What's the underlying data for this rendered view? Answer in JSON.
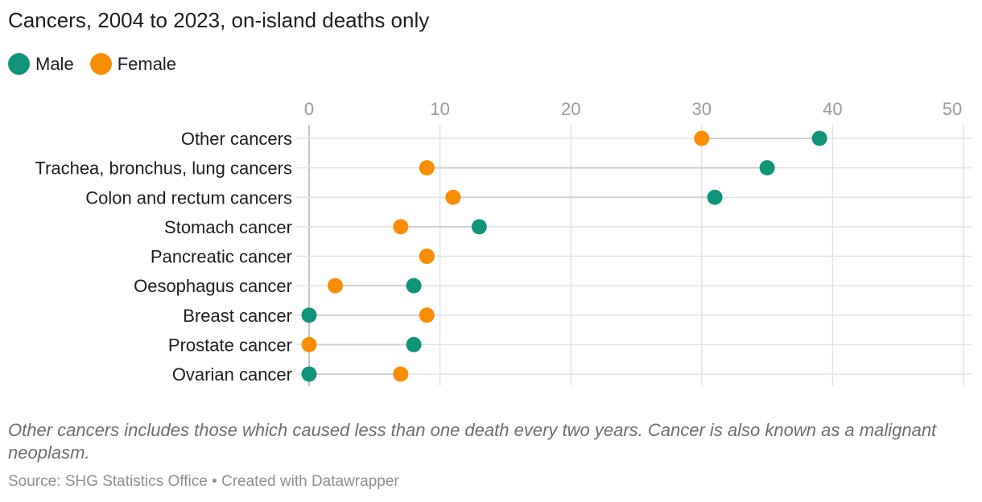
{
  "title": "Cancers, 2004 to 2023, on-island deaths only",
  "legend": [
    {
      "name": "Male",
      "color": "#0f947a"
    },
    {
      "name": "Female",
      "color": "#fa8c00"
    }
  ],
  "chart_data": {
    "type": "scatter",
    "subtype": "dot-plot",
    "title": "Cancers, 2004 to 2023, on-island deaths only",
    "xlabel": "",
    "ylabel": "",
    "xlim": [
      0,
      50
    ],
    "x_ticks": [
      0,
      10,
      20,
      30,
      40,
      50
    ],
    "grid": true,
    "legend_position": "top-left",
    "categories": [
      "Other cancers",
      "Trachea, bronchus, lung cancers",
      "Colon and rectum cancers",
      "Stomach cancer",
      "Pancreatic cancer",
      "Oesophagus cancer",
      "Breast cancer",
      "Prostate cancer",
      "Ovarian cancer"
    ],
    "series": [
      {
        "name": "Male",
        "color": "#0f947a",
        "values": [
          39,
          35,
          31,
          13,
          9,
          8,
          0,
          8,
          0
        ]
      },
      {
        "name": "Female",
        "color": "#fa8c00",
        "values": [
          30,
          9,
          11,
          7,
          9,
          2,
          9,
          0,
          7
        ]
      }
    ]
  },
  "notes": "Other cancers includes those which caused less than one death every two years. Cancer is also known as a malignant neoplasm.",
  "source": "Source: SHG Statistics Office • Created with Datawrapper"
}
